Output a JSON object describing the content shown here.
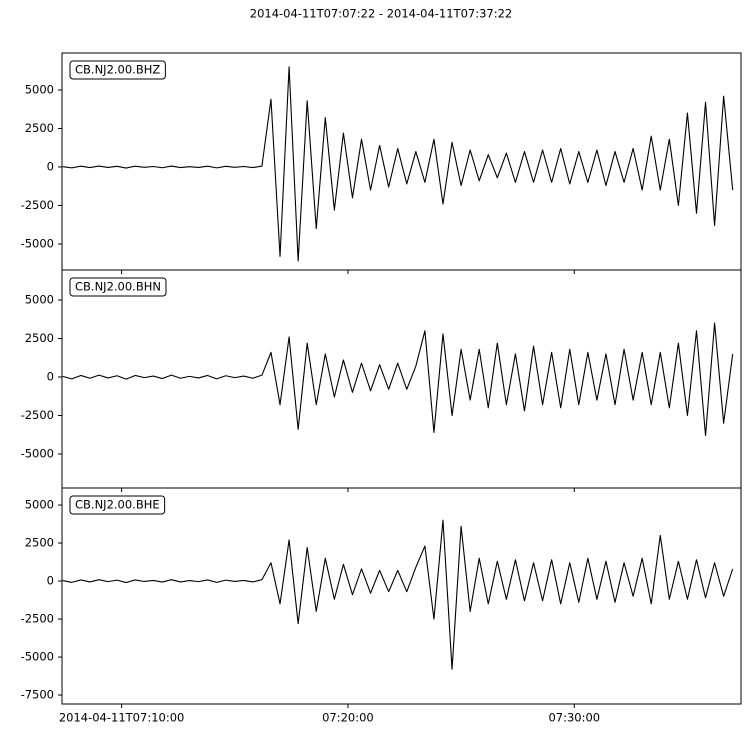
{
  "title": "2014-04-11T07:07:22  -  2014-04-11T07:37:22",
  "chart_data": [
    {
      "type": "line",
      "title": "CB.NJ2.00.BHZ",
      "color": "#000000",
      "x": [
        7.4,
        7.8,
        8.2,
        8.6,
        9,
        9.4,
        9.8,
        10.2,
        10.6,
        11,
        11.4,
        11.8,
        12.2,
        12.6,
        13,
        13.4,
        13.8,
        14.2,
        14.6,
        15,
        15.4,
        15.8,
        16.2,
        16.6,
        17,
        17.4,
        17.8,
        18.2,
        18.6,
        19,
        19.4,
        19.8,
        20.2,
        20.6,
        21,
        21.4,
        21.8,
        22.2,
        22.6,
        23,
        23.4,
        23.8,
        24.2,
        24.6,
        25,
        25.4,
        25.8,
        26.2,
        26.6,
        27,
        27.4,
        27.8,
        28.2,
        28.6,
        29,
        29.4,
        29.8,
        30.2,
        30.6,
        31,
        31.4,
        31.8,
        32.2,
        32.6,
        33,
        33.4,
        33.8,
        34.2,
        34.6,
        35,
        35.4,
        35.8,
        36.2,
        36.6,
        37
      ],
      "values": [
        20,
        -60,
        50,
        -40,
        60,
        -30,
        40,
        -70,
        50,
        -20,
        30,
        -50,
        60,
        -40,
        20,
        -30,
        50,
        -60,
        40,
        -20,
        30,
        -40,
        60,
        4400,
        -5800,
        6500,
        -6100,
        4300,
        -4000,
        3200,
        -2800,
        2200,
        -2000,
        1800,
        -1500,
        1400,
        -1300,
        1200,
        -1100,
        1000,
        -1000,
        1800,
        -2400,
        1600,
        -1200,
        1100,
        -900,
        800,
        -700,
        900,
        -1000,
        1000,
        -1000,
        1100,
        -1000,
        1200,
        -1100,
        1000,
        -1000,
        1100,
        -1200,
        1000,
        -1000,
        1200,
        -1500,
        2000,
        -1500,
        1800,
        -2500,
        3500,
        -3000,
        4200,
        -3800,
        4600,
        -1500
      ],
      "xlim": [
        7.3667,
        37.3667
      ],
      "ylim": [
        -6690,
        7400
      ],
      "yticks": [
        -5000,
        -2500,
        0,
        2500,
        5000
      ]
    },
    {
      "type": "line",
      "title": "CB.NJ2.00.BHN",
      "color": "#000000",
      "x": [
        7.4,
        7.8,
        8.2,
        8.6,
        9,
        9.4,
        9.8,
        10.2,
        10.6,
        11,
        11.4,
        11.8,
        12.2,
        12.6,
        13,
        13.4,
        13.8,
        14.2,
        14.6,
        15,
        15.4,
        15.8,
        16.2,
        16.6,
        17,
        17.4,
        17.8,
        18.2,
        18.6,
        19,
        19.4,
        19.8,
        20.2,
        20.6,
        21,
        21.4,
        21.8,
        22.2,
        22.6,
        23,
        23.4,
        23.8,
        24.2,
        24.6,
        25,
        25.4,
        25.8,
        26.2,
        26.6,
        27,
        27.4,
        27.8,
        28.2,
        28.6,
        29,
        29.4,
        29.8,
        30.2,
        30.6,
        31,
        31.4,
        31.8,
        32.2,
        32.6,
        33,
        33.4,
        33.8,
        34.2,
        34.6,
        35,
        35.4,
        35.8,
        36.2,
        36.6,
        37
      ],
      "values": [
        40,
        -120,
        100,
        -80,
        120,
        -60,
        80,
        -140,
        100,
        -40,
        60,
        -100,
        120,
        -80,
        40,
        -60,
        100,
        -120,
        80,
        -40,
        60,
        -80,
        120,
        1600,
        -1800,
        2600,
        -3400,
        2200,
        -1800,
        1500,
        -1300,
        1100,
        -1000,
        900,
        -900,
        800,
        -800,
        900,
        -800,
        700,
        3000,
        -3600,
        2800,
        -2500,
        1800,
        -1500,
        1800,
        -2000,
        2200,
        -1800,
        1500,
        -2200,
        2000,
        -1800,
        1600,
        -2000,
        1800,
        -1800,
        1600,
        -1500,
        1500,
        -1800,
        1800,
        -1500,
        1600,
        -1800,
        1600,
        -2000,
        2200,
        -2500,
        3000,
        -3800,
        3500,
        -3000,
        1500
      ],
      "xlim": [
        7.3667,
        37.3667
      ],
      "ylim": [
        -7210,
        6950
      ],
      "yticks": [
        -5000,
        -2500,
        0,
        2500,
        5000
      ]
    },
    {
      "type": "line",
      "title": "CB.NJ2.00.BHE",
      "color": "#000000",
      "x": [
        7.4,
        7.8,
        8.2,
        8.6,
        9,
        9.4,
        9.8,
        10.2,
        10.6,
        11,
        11.4,
        11.8,
        12.2,
        12.6,
        13,
        13.4,
        13.8,
        14.2,
        14.6,
        15,
        15.4,
        15.8,
        16.2,
        16.6,
        17,
        17.4,
        17.8,
        18.2,
        18.6,
        19,
        19.4,
        19.8,
        20.2,
        20.6,
        21,
        21.4,
        21.8,
        22.2,
        22.6,
        23,
        23.4,
        23.8,
        24.2,
        24.6,
        25,
        25.4,
        25.8,
        26.2,
        26.6,
        27,
        27.4,
        27.8,
        28.2,
        28.6,
        29,
        29.4,
        29.8,
        30.2,
        30.6,
        31,
        31.4,
        31.8,
        32.2,
        32.6,
        33,
        33.4,
        33.8,
        34.2,
        34.6,
        35,
        35.4,
        35.8,
        36.2,
        36.6,
        37
      ],
      "values": [
        30,
        -90,
        70,
        -60,
        90,
        -40,
        60,
        -100,
        70,
        -30,
        40,
        -70,
        90,
        -60,
        30,
        -40,
        70,
        -90,
        60,
        -30,
        40,
        -60,
        90,
        1200,
        -1500,
        2700,
        -2800,
        2200,
        -2000,
        1500,
        -1200,
        1100,
        -900,
        800,
        -800,
        700,
        -700,
        700,
        -700,
        900,
        2300,
        -2500,
        4000,
        -5800,
        3600,
        -2000,
        1500,
        -1500,
        1300,
        -1200,
        1400,
        -1300,
        1200,
        -1300,
        1400,
        -1500,
        1200,
        -1400,
        1500,
        -1200,
        1300,
        -1400,
        1200,
        -1000,
        1500,
        -1500,
        3000,
        -1200,
        1300,
        -1200,
        1400,
        -1100,
        1200,
        -1000,
        800
      ],
      "xlim": [
        7.3667,
        37.3667
      ],
      "ylim": [
        -8090,
        6120
      ],
      "yticks": [
        -7500,
        -5000,
        -2500,
        0,
        2500,
        5000
      ],
      "xticks": [
        {
          "value": 10,
          "label": "2014-04-11T07:10:00"
        },
        {
          "value": 20,
          "label": "07:20:00"
        },
        {
          "value": 30,
          "label": "07:30:00"
        }
      ]
    }
  ]
}
